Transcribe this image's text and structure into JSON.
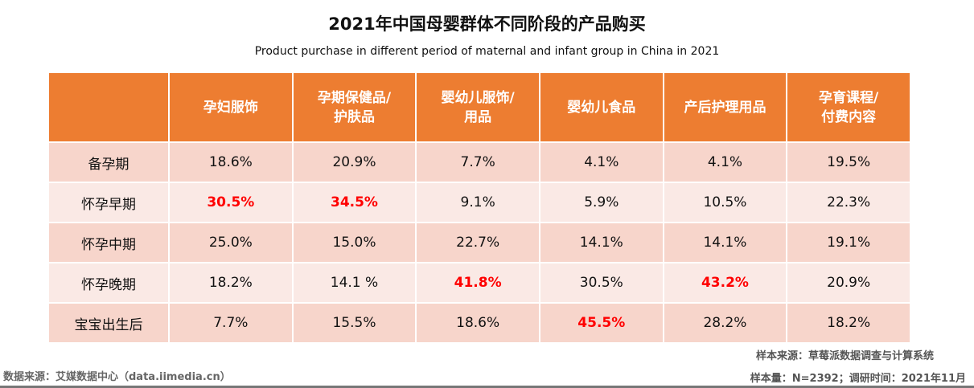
{
  "title": "2021年中国母婴群体不同阶段的产品购买",
  "subtitle": "Product purchase in different period of maternal and infant group in China in 2021",
  "chart_data": {
    "type": "table",
    "columns": [
      "",
      "孕妇服饰",
      "孕期保健品/\n护肤品",
      "婴幼儿服饰/\n用品",
      "婴幼儿食品",
      "产后护理用品",
      "孕育课程/\n付费内容"
    ],
    "rows": [
      {
        "label": "备孕期",
        "values": [
          "18.6%",
          "20.9%",
          "7.7%",
          "4.1%",
          "4.1%",
          "19.5%"
        ],
        "highlight": []
      },
      {
        "label": "怀孕早期",
        "values": [
          "30.5%",
          "34.5%",
          "9.1%",
          "5.9%",
          "10.5%",
          "22.3%"
        ],
        "highlight": [
          0,
          1
        ]
      },
      {
        "label": "怀孕中期",
        "values": [
          "25.0%",
          "15.0%",
          "22.7%",
          "14.1%",
          "14.1%",
          "19.1%"
        ],
        "highlight": []
      },
      {
        "label": "怀孕晚期",
        "values": [
          "18.2%",
          "14.1 %",
          "41.8%",
          "30.5%",
          "43.2%",
          "20.9%"
        ],
        "highlight": [
          2,
          4
        ]
      },
      {
        "label": "宝宝出生后",
        "values": [
          "7.7%",
          "15.5%",
          "18.6%",
          "45.5%",
          "28.2%",
          "18.2%"
        ],
        "highlight": [
          3
        ]
      }
    ],
    "colors": {
      "header": "#ed7d31",
      "row_odd": "#f7d5cb",
      "row_even": "#fae9e5",
      "highlight": "#ff0000"
    }
  },
  "footer": {
    "source": "数据来源：艾媒数据中心（data.iimedia.cn）",
    "sample_source": "样本来源：草莓派数据调查与计算系统",
    "sample_size": "样本量：N=2392；调研时间：2021年11月"
  }
}
